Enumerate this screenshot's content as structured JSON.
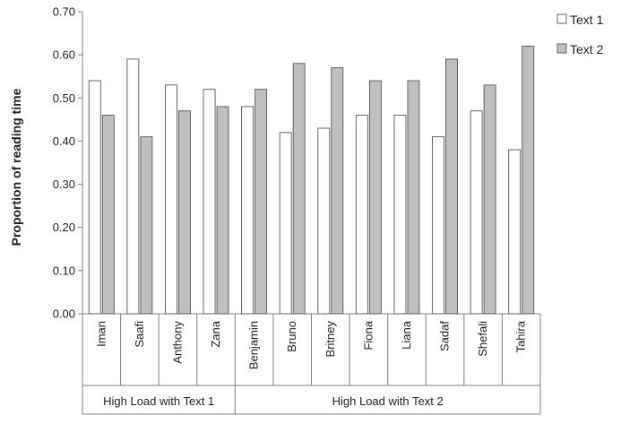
{
  "chart_data": {
    "type": "bar",
    "ylabel": "Proportion of reading time",
    "xlabel": "",
    "ylim": [
      0,
      0.7
    ],
    "yticks": [
      "0.00",
      "0.10",
      "0.20",
      "0.30",
      "0.40",
      "0.50",
      "0.60",
      "0.70"
    ],
    "categories": [
      "Iman",
      "Saafi",
      "Anthony",
      "Zana",
      "Benjamin",
      "Bruno",
      "Britney",
      "Fiona",
      "Liana",
      "Sadaf",
      "Shefali",
      "Tahira"
    ],
    "groups": [
      {
        "label": "High Load with Text 1",
        "count": 4
      },
      {
        "label": "High Load with Text 2",
        "count": 8
      }
    ],
    "series": [
      {
        "name": "Text 1",
        "color": "#ffffff",
        "values": [
          0.54,
          0.59,
          0.53,
          0.52,
          0.48,
          0.42,
          0.43,
          0.46,
          0.46,
          0.41,
          0.47,
          0.38
        ]
      },
      {
        "name": "Text 2",
        "color": "#bfbfbf",
        "values": [
          0.46,
          0.41,
          0.47,
          0.48,
          0.52,
          0.58,
          0.57,
          0.54,
          0.54,
          0.59,
          0.53,
          0.62
        ]
      }
    ],
    "grid": false,
    "legend_position": "top-right"
  }
}
